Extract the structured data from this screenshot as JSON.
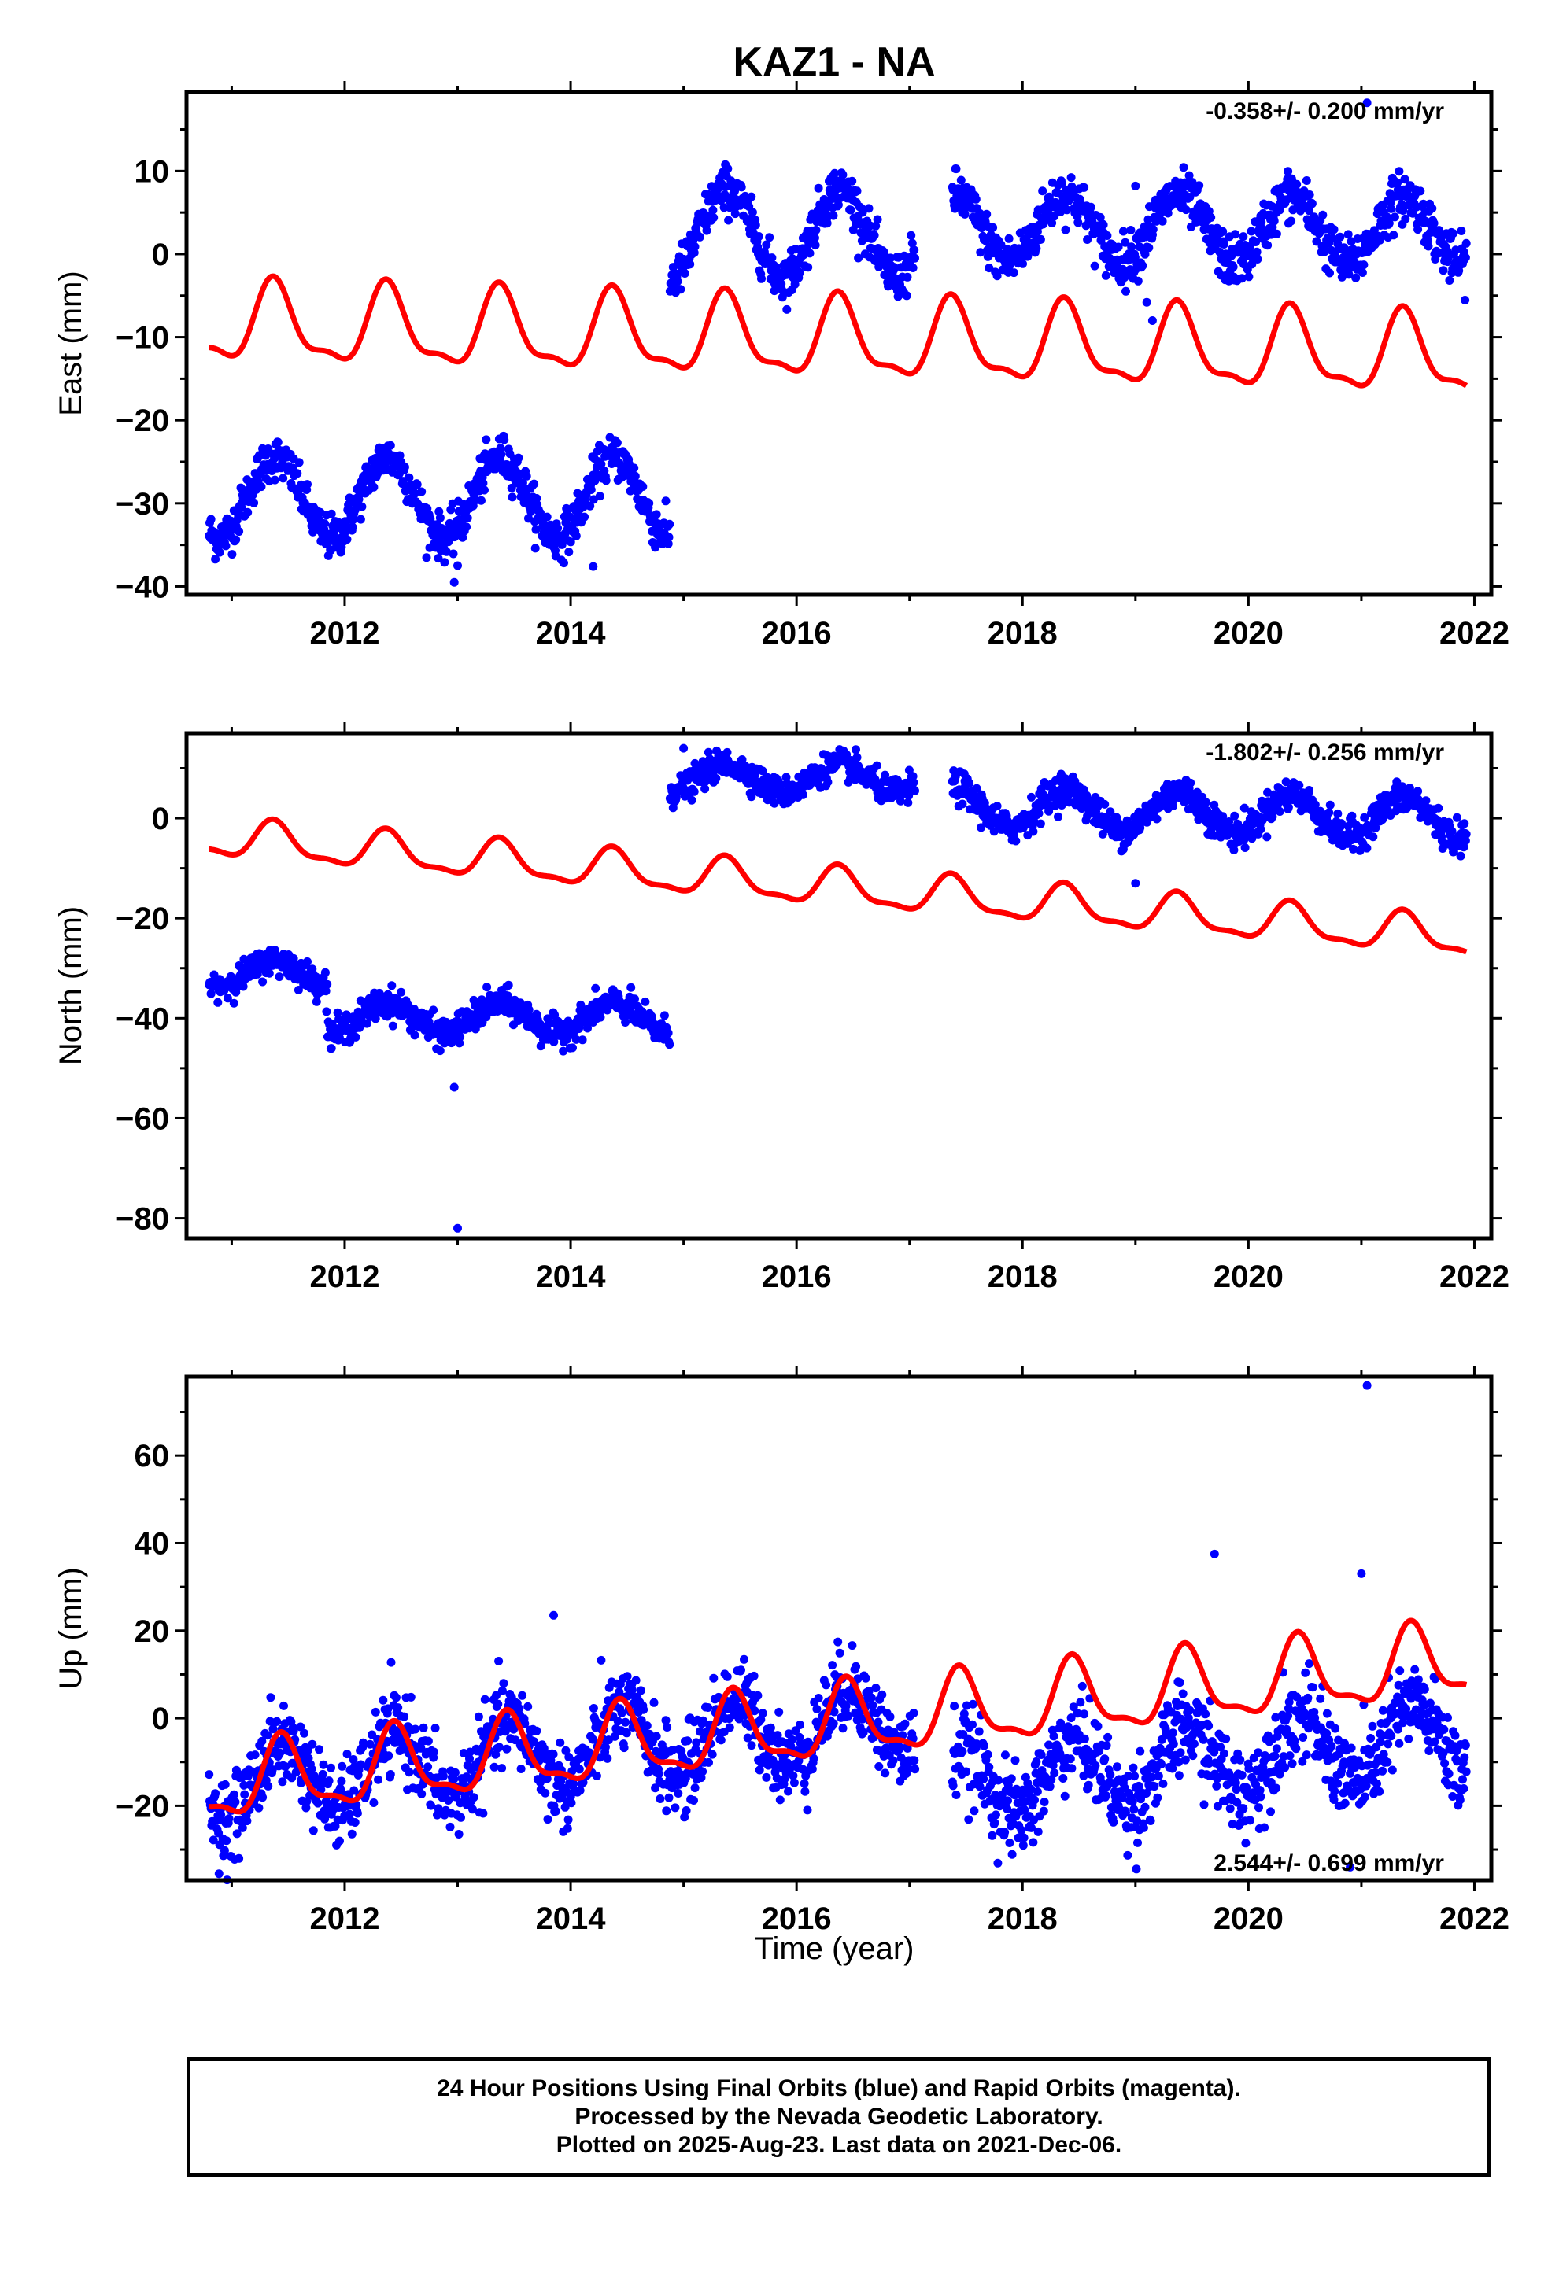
{
  "title": "KAZ1 - NA",
  "xlabel": "Time (year)",
  "footer": {
    "line1": "24 Hour Positions Using Final Orbits (blue) and Rapid Orbits (magenta).",
    "line2": "Processed by the Nevada Geodetic Laboratory.",
    "line3": "Plotted on 2025-Aug-23. Last data on 2021-Dec-06."
  },
  "colors": {
    "final_orbits": "#0000ff",
    "model": "#ff0000",
    "frame": "#000000"
  },
  "chart_data": [
    {
      "type": "scatter",
      "component": "East",
      "ylabel": "East (mm)",
      "rate_label": "-0.358+/- 0.200 mm/yr",
      "rate_position": "top-right",
      "xlim": [
        2010.6,
        2022.15
      ],
      "ylim": [
        -41,
        19.5
      ],
      "xticks": [
        2012,
        2014,
        2016,
        2018,
        2020,
        2022
      ],
      "yticks": [
        -40,
        -30,
        -20,
        -10,
        0,
        10
      ],
      "segments": [
        {
          "start": 2010.8,
          "end": 2014.88,
          "offset": -29.3,
          "trend": 0,
          "amp": 4.8,
          "phase": 0.13,
          "jitter": 1.3
        },
        {
          "start": 2014.88,
          "end": 2017.05,
          "offset": 2.5,
          "trend": 0,
          "amp": 5.3,
          "phase": 0.13,
          "jitter": 1.4
        },
        {
          "start": 2017.38,
          "end": 2021.93,
          "offset": 3.3,
          "trend": -0.1,
          "amp": 4.0,
          "phase": 0.13,
          "jitter": 1.5
        }
      ],
      "outliers": [
        [
          2012.97,
          -39.5
        ],
        [
          2013.0,
          -37.5
        ],
        [
          2014.2,
          -37.6
        ],
        [
          2019.0,
          8.2
        ],
        [
          2019.1,
          -5.8
        ],
        [
          2019.15,
          -8.0
        ],
        [
          2021.05,
          18.2
        ]
      ],
      "model": {
        "start": 2010.8,
        "end": 2021.93,
        "base": -8.5,
        "trend": -0.358,
        "amp": 4.5,
        "phase": 0.13
      }
    },
    {
      "type": "scatter",
      "component": "North",
      "ylabel": "North (mm)",
      "rate_label": "-1.802+/- 0.256 mm/yr",
      "rate_position": "top-right",
      "xlim": [
        2010.6,
        2022.15
      ],
      "ylim": [
        -84,
        17
      ],
      "xticks": [
        2012,
        2014,
        2016,
        2018,
        2020,
        2022
      ],
      "yticks": [
        -80,
        -60,
        -40,
        -20,
        0
      ],
      "segments": [
        {
          "start": 2010.8,
          "end": 2011.85,
          "offset": -31.0,
          "trend": 0,
          "amp": 2.5,
          "phase": 0.13,
          "jitter": 1.4
        },
        {
          "start": 2011.85,
          "end": 2014.88,
          "offset": -40.0,
          "trend": 0,
          "amp": 3.0,
          "phase": 0.13,
          "jitter": 1.5
        },
        {
          "start": 2014.88,
          "end": 2017.05,
          "offset": 8.0,
          "trend": 0,
          "amp": 2.8,
          "phase": 0.13,
          "jitter": 1.4
        },
        {
          "start": 2017.38,
          "end": 2021.93,
          "offset": 2.5,
          "trend": -0.6,
          "amp": 4.0,
          "phase": 0.13,
          "jitter": 1.6
        }
      ],
      "outliers": [
        [
          2012.97,
          -53.8
        ],
        [
          2013.0,
          -82.0
        ],
        [
          2012.95,
          -42.5
        ],
        [
          2019.0,
          -13.0
        ],
        [
          2015.0,
          14.0
        ]
      ],
      "model": {
        "start": 2010.8,
        "end": 2021.93,
        "base": -4.0,
        "trend": -1.802,
        "amp": 3.6,
        "phase": 0.13
      }
    },
    {
      "type": "scatter",
      "component": "Up",
      "ylabel": "Up (mm)",
      "rate_label": "2.544+/- 0.699 mm/yr",
      "rate_position": "bottom-right",
      "xlim": [
        2010.6,
        2022.15
      ],
      "ylim": [
        -37,
        78
      ],
      "xticks": [
        2012,
        2014,
        2016,
        2018,
        2020,
        2022
      ],
      "yticks": [
        -20,
        0,
        20,
        40,
        60
      ],
      "segments": [
        {
          "start": 2010.8,
          "end": 2017.05,
          "offset": -15.5,
          "trend": 2.544,
          "amp": 8.0,
          "phase": 0.2,
          "jitter": 4.6
        },
        {
          "start": 2017.38,
          "end": 2021.93,
          "offset": -15.5,
          "trend": 2.544,
          "amp": 8.0,
          "phase": 0.2,
          "jitter": 5.0
        }
      ],
      "outliers": [
        [
          2021.05,
          76.0
        ],
        [
          2020.9,
          -34.0
        ],
        [
          2019.7,
          37.5
        ],
        [
          2013.85,
          23.5
        ],
        [
          2021.0,
          33.0
        ],
        [
          2020.8,
          -20.0
        ]
      ],
      "model": {
        "start": 2010.8,
        "end": 2021.93,
        "base": -15.5,
        "trend": 2.544,
        "amp": 8.0,
        "phase": 0.2
      }
    }
  ]
}
